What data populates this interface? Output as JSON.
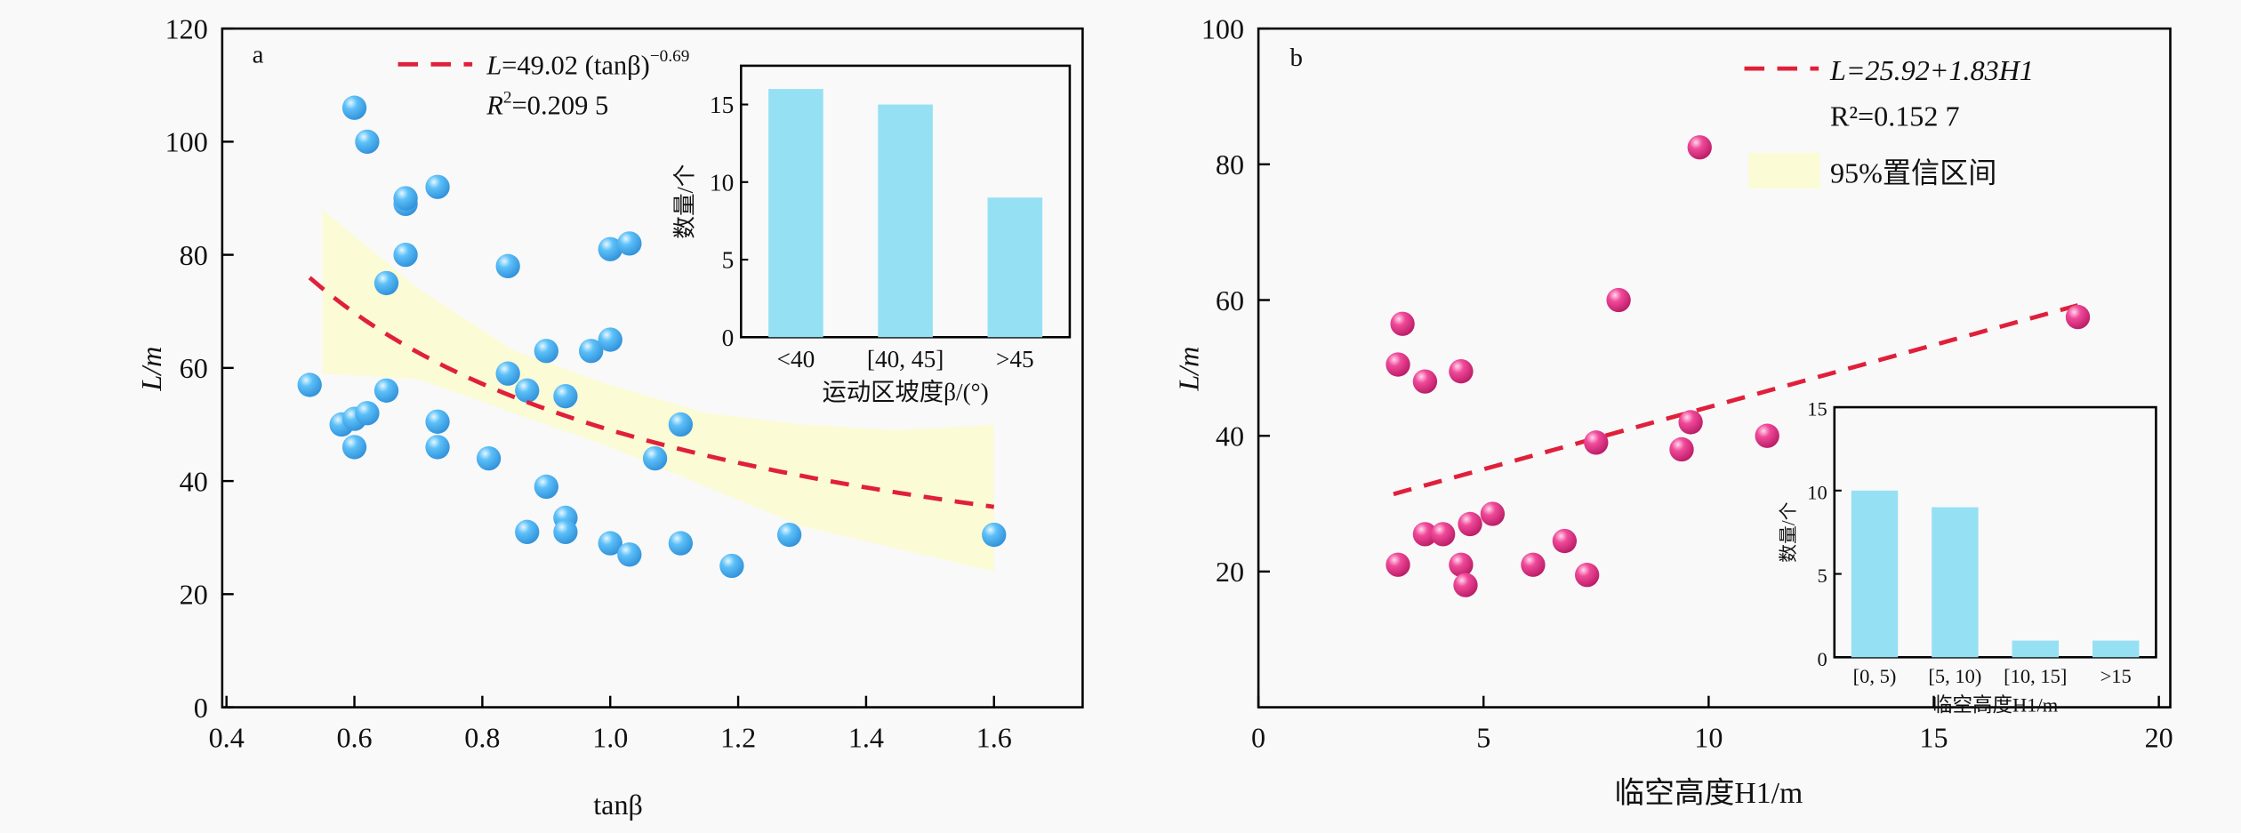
{
  "colors": {
    "point_a": "#4aaef0",
    "point_b": "#e8328a",
    "fit": "#e0203a",
    "band": "#fbfbd6",
    "bar": "#96e0f4"
  },
  "chart_data": [
    {
      "panel": "a",
      "type": "scatter",
      "xlabel": "tanβ",
      "ylabel": "L/m",
      "xlim": [
        0.4,
        1.75
      ],
      "ylim": [
        0,
        120
      ],
      "xticks": [
        "0.4",
        "0.6",
        "0.8",
        "1.0",
        "1.2",
        "1.4",
        "1.6"
      ],
      "xtick_values": [
        0.4,
        0.6,
        0.8,
        1.0,
        1.2,
        1.4,
        1.6
      ],
      "yticks": [
        "0",
        "20",
        "40",
        "60",
        "80",
        "100",
        "120"
      ],
      "ytick_values": [
        0,
        20,
        40,
        60,
        80,
        100,
        120
      ],
      "legend": {
        "fit_label_prefix": "L",
        "fit_label_body": "=49.02 (tanβ)",
        "fit_label_exp": "−0.69",
        "r2_prefix": "R",
        "r2_body": "=0.209 5",
        "position": "top-center"
      },
      "fit": {
        "model": "power",
        "a": 49.02,
        "b": -0.69,
        "x_range": [
          0.53,
          1.6
        ]
      },
      "band": {
        "x": [
          0.55,
          0.7,
          0.85,
          1.0,
          1.15,
          1.3,
          1.45,
          1.6
        ],
        "upper": [
          88,
          74,
          63,
          57,
          52,
          50,
          49,
          50
        ],
        "lower": [
          59,
          58,
          52,
          46,
          39,
          32,
          28,
          24
        ]
      },
      "points": [
        [
          0.53,
          57
        ],
        [
          0.58,
          50
        ],
        [
          0.6,
          51
        ],
        [
          0.6,
          46
        ],
        [
          0.6,
          106
        ],
        [
          0.62,
          52
        ],
        [
          0.62,
          100
        ],
        [
          0.65,
          75
        ],
        [
          0.65,
          56
        ],
        [
          0.68,
          89
        ],
        [
          0.68,
          90
        ],
        [
          0.68,
          80
        ],
        [
          0.73,
          92
        ],
        [
          0.73,
          50.5
        ],
        [
          0.73,
          46
        ],
        [
          0.81,
          44
        ],
        [
          0.84,
          78
        ],
        [
          0.84,
          59
        ],
        [
          0.87,
          56
        ],
        [
          0.87,
          31
        ],
        [
          0.9,
          63
        ],
        [
          0.9,
          39
        ],
        [
          0.93,
          55
        ],
        [
          0.93,
          33.5
        ],
        [
          0.93,
          31
        ],
        [
          0.97,
          63
        ],
        [
          1.0,
          65
        ],
        [
          1.0,
          81
        ],
        [
          1.0,
          29
        ],
        [
          1.03,
          82
        ],
        [
          1.03,
          27
        ],
        [
          1.07,
          44
        ],
        [
          1.11,
          50
        ],
        [
          1.11,
          29
        ],
        [
          1.19,
          25
        ],
        [
          1.28,
          30.5
        ],
        [
          1.6,
          30.5
        ]
      ],
      "inset": {
        "type": "bar",
        "categories": [
          "<40",
          "[40, 45]",
          ">45"
        ],
        "values": [
          16,
          15,
          9
        ],
        "ylim": [
          0,
          17.5
        ],
        "yticks": [
          "0",
          "5",
          "10",
          "15"
        ],
        "ytick_values": [
          0,
          5,
          10,
          15
        ],
        "ylabel": "数量/个",
        "xlabel": "运动区坡度β/(°)"
      }
    },
    {
      "panel": "b",
      "type": "scatter",
      "xlabel": "临空高度H1/m",
      "ylabel": "L/m",
      "xlim": [
        0,
        20
      ],
      "ylim": [
        0,
        100
      ],
      "xticks": [
        "0",
        "5",
        "10",
        "15",
        "20"
      ],
      "xtick_values": [
        0,
        5,
        10,
        15,
        20
      ],
      "yticks": [
        "20",
        "40",
        "60",
        "80",
        "100"
      ],
      "ytick_values": [
        20,
        40,
        60,
        80,
        100
      ],
      "legend": {
        "fit_label": "L=25.92+1.83H1",
        "r2_label": "R²=0.152 7",
        "band_label": "95%置信区间",
        "position": "top-right"
      },
      "fit": {
        "model": "linear",
        "intercept": 25.92,
        "slope": 1.83,
        "x_range": [
          3.0,
          18.2
        ]
      },
      "points": [
        [
          3.1,
          21
        ],
        [
          3.1,
          50.5
        ],
        [
          3.2,
          56.5
        ],
        [
          3.7,
          25.5
        ],
        [
          3.7,
          48
        ],
        [
          4.1,
          25.5
        ],
        [
          4.5,
          49.5
        ],
        [
          4.5,
          21
        ],
        [
          4.6,
          18
        ],
        [
          4.7,
          27
        ],
        [
          5.2,
          28.5
        ],
        [
          6.1,
          21
        ],
        [
          6.8,
          24.5
        ],
        [
          7.3,
          19.5
        ],
        [
          7.5,
          39
        ],
        [
          8.0,
          60
        ],
        [
          9.4,
          38
        ],
        [
          9.6,
          42
        ],
        [
          9.8,
          82.5
        ],
        [
          11.3,
          40
        ],
        [
          18.2,
          57.5
        ]
      ],
      "inset": {
        "type": "bar",
        "categories": [
          "[0, 5)",
          "[5, 10)",
          "[10, 15]",
          ">15"
        ],
        "values": [
          10,
          9,
          1,
          1
        ],
        "ylim": [
          0,
          15
        ],
        "yticks": [
          "0",
          "5",
          "10",
          "15"
        ],
        "ytick_values": [
          0,
          5,
          10,
          15
        ],
        "ylabel": "数量/个",
        "xlabel": "临空高度H1/m"
      }
    }
  ]
}
